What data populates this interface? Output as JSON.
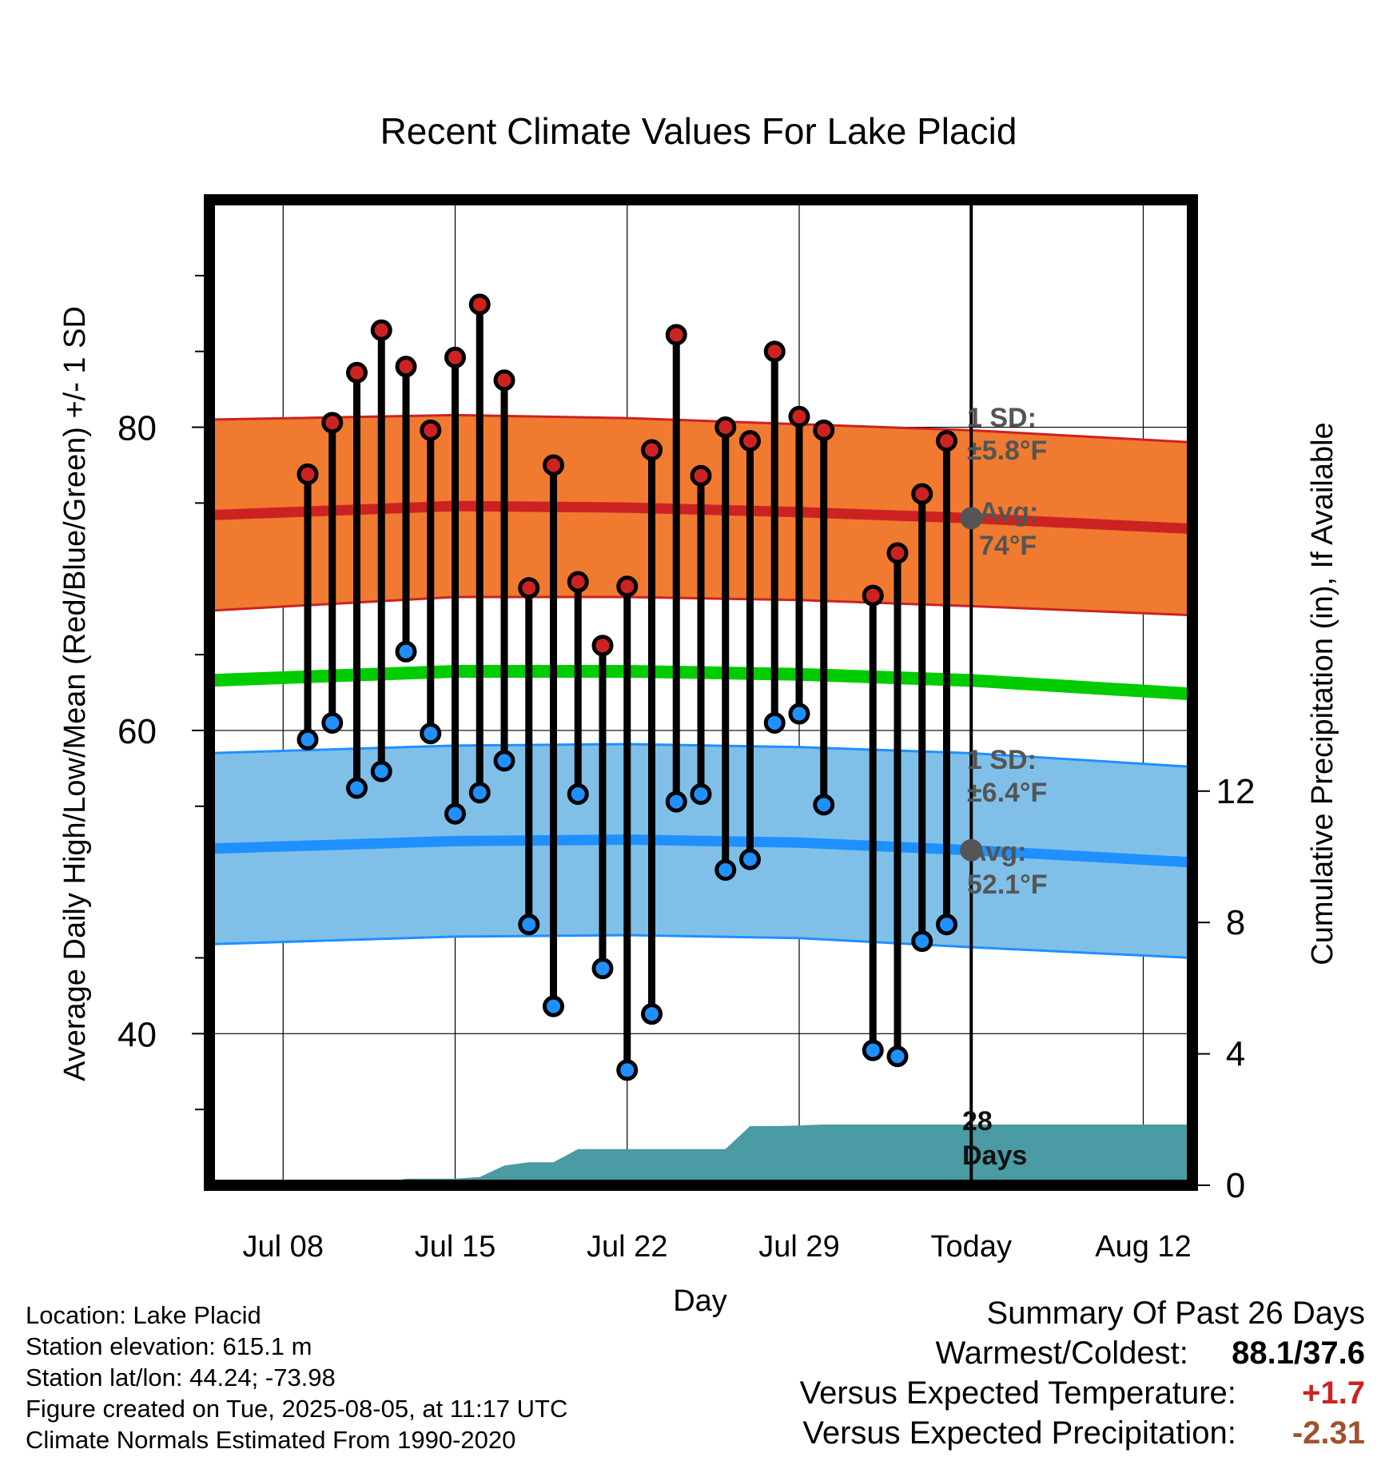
{
  "chart_data": {
    "type": "line",
    "title": "Recent Climate Values For Lake Placid",
    "xlabel": "Day",
    "ylabel": "Average Daily High/Low/Mean (Red/Blue/Green) +/- 1 SD",
    "ylabel_right": "Cumulative Precipitation (in), If Available",
    "x_range": [
      "Jul 05",
      "Aug 14"
    ],
    "ylim": [
      30,
      95
    ],
    "ylim_right": [
      0,
      30
    ],
    "x_ticks": [
      {
        "date": "Jul 08",
        "label": "Jul 08"
      },
      {
        "date": "Jul 15",
        "label": "Jul 15"
      },
      {
        "date": "Jul 22",
        "label": "Jul 22"
      },
      {
        "date": "Jul 29",
        "label": "Jul 29"
      },
      {
        "date": "Aug 05",
        "label": "Today"
      },
      {
        "date": "Aug 12",
        "label": "Aug 12"
      }
    ],
    "y_ticks": [
      40,
      60,
      80
    ],
    "y_ticks_right": [
      0,
      4,
      8,
      12
    ],
    "today": "Aug 05",
    "grid": true,
    "series": [
      {
        "name": "Daily High",
        "color": "#cc2222",
        "x": [
          "Jul 09",
          "Jul 10",
          "Jul 11",
          "Jul 12",
          "Jul 13",
          "Jul 14",
          "Jul 15",
          "Jul 16",
          "Jul 17",
          "Jul 18",
          "Jul 19",
          "Jul 20",
          "Jul 21",
          "Jul 22",
          "Jul 23",
          "Jul 24",
          "Jul 25",
          "Jul 26",
          "Jul 27",
          "Jul 28",
          "Jul 29",
          "Jul 30",
          "Aug 01",
          "Aug 02",
          "Aug 03",
          "Aug 04"
        ],
        "values": [
          76.9,
          80.3,
          83.6,
          86.4,
          84.0,
          79.8,
          84.6,
          88.1,
          83.1,
          69.4,
          77.5,
          69.8,
          65.6,
          69.5,
          78.5,
          86.1,
          76.8,
          80.0,
          79.1,
          85.0,
          80.7,
          79.8,
          68.9,
          71.7,
          75.6,
          79.1
        ]
      },
      {
        "name": "Daily Low",
        "color": "#1e90ff",
        "x": [
          "Jul 09",
          "Jul 10",
          "Jul 11",
          "Jul 12",
          "Jul 13",
          "Jul 14",
          "Jul 15",
          "Jul 16",
          "Jul 17",
          "Jul 18",
          "Jul 19",
          "Jul 20",
          "Jul 21",
          "Jul 22",
          "Jul 23",
          "Jul 24",
          "Jul 25",
          "Jul 26",
          "Jul 27",
          "Jul 28",
          "Jul 29",
          "Jul 30",
          "Aug 01",
          "Aug 02",
          "Aug 03",
          "Aug 04"
        ],
        "values": [
          59.4,
          60.5,
          56.2,
          57.3,
          65.2,
          59.8,
          54.5,
          55.9,
          58.0,
          47.2,
          41.8,
          55.8,
          44.3,
          37.6,
          41.3,
          55.3,
          55.8,
          50.8,
          51.5,
          60.5,
          61.1,
          55.1,
          38.9,
          38.5,
          46.1,
          47.2
        ]
      },
      {
        "name": "Normal High",
        "color": "#cc2222",
        "x": [
          "Jul 05",
          "Jul 15",
          "Jul 22",
          "Jul 29",
          "Aug 05",
          "Aug 14"
        ],
        "values": [
          74.2,
          74.8,
          74.7,
          74.4,
          74.0,
          73.3
        ],
        "sd": [
          6.3,
          6.0,
          5.9,
          5.8,
          5.8,
          5.7
        ]
      },
      {
        "name": "Normal Low",
        "color": "#1e90ff",
        "x": [
          "Jul 05",
          "Jul 15",
          "Jul 22",
          "Jul 29",
          "Aug 05",
          "Aug 14"
        ],
        "values": [
          52.2,
          52.7,
          52.8,
          52.6,
          52.1,
          51.3
        ],
        "sd": [
          6.3,
          6.3,
          6.3,
          6.3,
          6.4,
          6.3
        ]
      },
      {
        "name": "Normal Mean",
        "color": "#00cc00",
        "x": [
          "Jul 05",
          "Jul 15",
          "Jul 22",
          "Jul 29",
          "Aug 05",
          "Aug 14"
        ],
        "values": [
          63.3,
          63.9,
          63.9,
          63.7,
          63.3,
          62.4
        ]
      },
      {
        "name": "Cumulative Precipitation",
        "color": "#4a9ba3",
        "x": [
          "Jul 05",
          "Jul 11",
          "Jul 12",
          "Jul 13",
          "Jul 14",
          "Jul 15",
          "Jul 16",
          "Jul 17",
          "Jul 18",
          "Jul 19",
          "Jul 20",
          "Jul 21",
          "Jul 22",
          "Jul 23",
          "Jul 24",
          "Jul 25",
          "Jul 26",
          "Jul 27",
          "Jul 28",
          "Jul 29",
          "Jul 30",
          "Jul 31",
          "Aug 01",
          "Aug 02",
          "Aug 03",
          "Aug 04",
          "Aug 14"
        ],
        "values": [
          0,
          0,
          0.05,
          0.2,
          0.2,
          0.2,
          0.25,
          0.6,
          0.7,
          0.7,
          1.1,
          1.1,
          1.1,
          1.1,
          1.1,
          1.1,
          1.1,
          1.8,
          1.8,
          1.82,
          1.85,
          1.85,
          1.85,
          1.85,
          1.85,
          1.85,
          1.85
        ]
      }
    ],
    "annotations": {
      "high_sd_label": "1 SD:",
      "high_sd_value": "±5.8°F",
      "high_avg_label": "Avg:",
      "high_avg_value": "74°F",
      "low_sd_label": "1 SD:",
      "low_sd_value": "±6.4°F",
      "low_avg_label": "Avg:",
      "low_avg_value": "52.1°F",
      "days_count": "28",
      "days_word": "Days"
    }
  },
  "info": {
    "location": "Location: Lake Placid",
    "elevation": "Station elevation: 615.1 m",
    "latlon": "Station lat/lon: 44.24; -73.98",
    "created": "Figure created on Tue, 2025-08-05, at 11:17 UTC",
    "normals": "Climate Normals Estimated From 1990-2020"
  },
  "summary": {
    "title": "Summary Of Past 26 Days",
    "warmest_label": "Warmest/Coldest:",
    "warmest_value": "88.1/37.6",
    "temp_label": "Versus Expected Temperature:",
    "temp_value": "+1.7",
    "precip_label": "Versus Expected Precipitation:",
    "precip_value": "-2.31"
  },
  "colors": {
    "high_band": "#f07a30",
    "high_line": "#cc2222",
    "low_band": "#80c0e8",
    "low_line": "#1e90ff",
    "mean_line": "#00cc00",
    "precip": "#4a9ba3",
    "annotation": "#555555"
  }
}
